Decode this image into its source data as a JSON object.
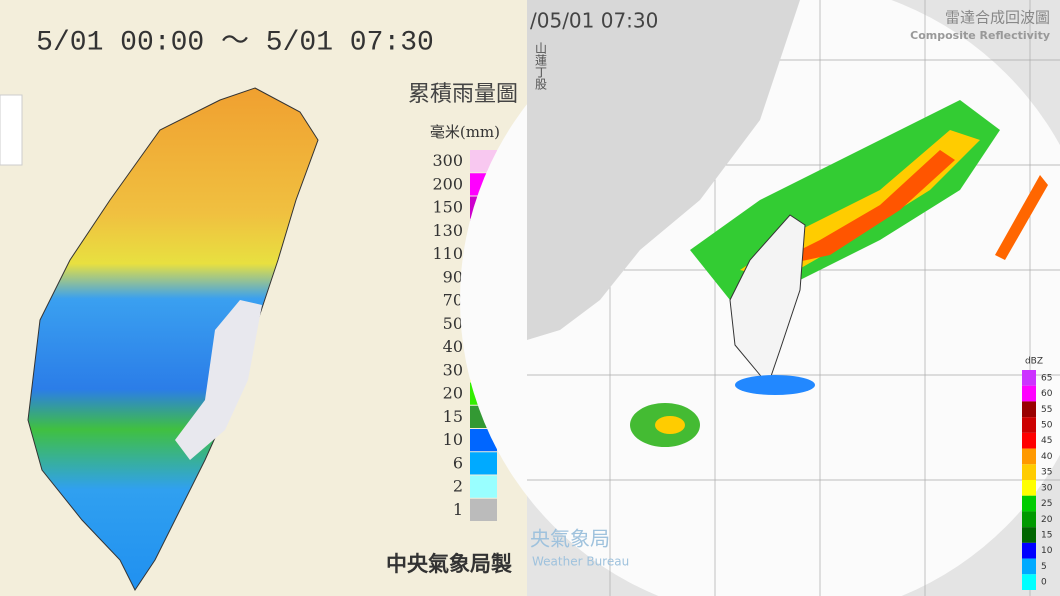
{
  "left": {
    "title": "5/01 00:00 ～ 5/01 07:30",
    "map_title": "累積雨量圖",
    "unit": "毫米(mm)",
    "legend": [
      {
        "label": 300,
        "color": "#f8c8f0"
      },
      {
        "label": 200,
        "color": "#ff00ff"
      },
      {
        "label": 150,
        "color": "#cc00cc"
      },
      {
        "label": 130,
        "color": "#990099"
      },
      {
        "label": 110,
        "color": "#990000"
      },
      {
        "label": 90,
        "color": "#cc0000"
      },
      {
        "label": 70,
        "color": "#ff0000"
      },
      {
        "label": 50,
        "color": "#ff9900"
      },
      {
        "label": 40,
        "color": "#ffcc00"
      },
      {
        "label": 30,
        "color": "#ffff00"
      },
      {
        "label": 20,
        "color": "#33ee00"
      },
      {
        "label": 15,
        "color": "#339933"
      },
      {
        "label": 10,
        "color": "#0066ff"
      },
      {
        "label": 6,
        "color": "#00aaff"
      },
      {
        "label": 2,
        "color": "#99ffff"
      },
      {
        "label": 1,
        "color": "#bbbbbb"
      }
    ],
    "credit": "中央氣象局製"
  },
  "right": {
    "title": "/05/01 07:30",
    "map_title": "雷達合成回波圖",
    "subtitle": "Composite Reflectivity",
    "side_label": "山蓮丁股",
    "unit": "dBZ",
    "legend": [
      {
        "label": 65,
        "color": "#cc33ff"
      },
      {
        "label": 60,
        "color": "#ff00ff"
      },
      {
        "label": 55,
        "color": "#990000"
      },
      {
        "label": 50,
        "color": "#cc0000"
      },
      {
        "label": 45,
        "color": "#ff0000"
      },
      {
        "label": 40,
        "color": "#ff9900"
      },
      {
        "label": 35,
        "color": "#ffcc00"
      },
      {
        "label": 30,
        "color": "#ffff00"
      },
      {
        "label": 25,
        "color": "#00cc00"
      },
      {
        "label": 20,
        "color": "#009900"
      },
      {
        "label": 15,
        "color": "#006600"
      },
      {
        "label": 10,
        "color": "#0000ff"
      },
      {
        "label": 5,
        "color": "#00aaff"
      },
      {
        "label": 0,
        "color": "#00ffff"
      }
    ],
    "logo_text": "央氣象局",
    "logo_sub": "Weather Bureau"
  }
}
